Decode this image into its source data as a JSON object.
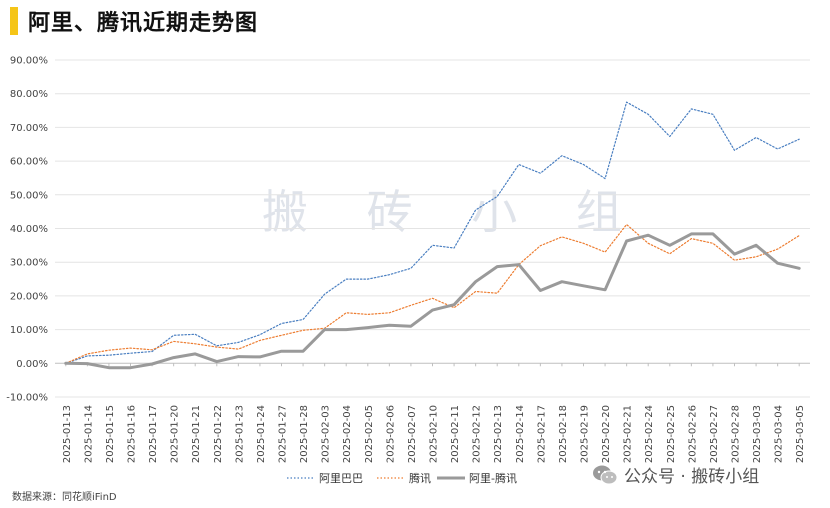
{
  "title": "阿里、腾讯近期走势图",
  "source": "数据来源：同花顺iFinD",
  "watermark": "搬 砖 小 组",
  "wechat_label": "公众号 · 搬砖小组",
  "colors": {
    "alibaba": "#4a7fc1",
    "tencent": "#ed7d31",
    "spread": "#9a9a9a",
    "accent": "#f5c518"
  },
  "chart_data": {
    "type": "line",
    "categories": [
      "2025-01-13",
      "2025-01-14",
      "2025-01-15",
      "2025-01-16",
      "2025-01-17",
      "2025-01-20",
      "2025-01-21",
      "2025-01-22",
      "2025-01-23",
      "2025-01-24",
      "2025-01-27",
      "2025-01-28",
      "2025-02-03",
      "2025-02-04",
      "2025-02-05",
      "2025-02-06",
      "2025-02-07",
      "2025-02-10",
      "2025-02-11",
      "2025-02-12",
      "2025-02-13",
      "2025-02-14",
      "2025-02-17",
      "2025-02-18",
      "2025-02-19",
      "2025-02-20",
      "2025-02-21",
      "2025-02-24",
      "2025-02-25",
      "2025-02-26",
      "2025-02-27",
      "2025-02-28",
      "2025-03-03",
      "2025-03-04",
      "2025-03-05"
    ],
    "series": [
      {
        "name": "阿里巴巴",
        "style": "dotted",
        "values": [
          0.0,
          2.2,
          2.4,
          3.0,
          3.5,
          8.3,
          8.6,
          5.2,
          6.2,
          8.5,
          11.8,
          13.0,
          20.5,
          25.0,
          25.0,
          26.3,
          28.2,
          35.0,
          34.2,
          45.5,
          49.5,
          59.0,
          56.4,
          61.6,
          59.0,
          54.8,
          77.5,
          73.9,
          67.3,
          75.5,
          73.9,
          63.2,
          67.0,
          63.6,
          66.5
        ]
      },
      {
        "name": "腾讯",
        "style": "dotted",
        "values": [
          0.0,
          2.8,
          3.9,
          4.5,
          4.0,
          6.5,
          5.8,
          4.8,
          4.2,
          6.8,
          8.3,
          9.8,
          10.4,
          15.0,
          14.5,
          15.0,
          17.2,
          19.3,
          16.5,
          21.3,
          20.8,
          29.3,
          34.9,
          37.5,
          35.6,
          33.0,
          41.2,
          35.6,
          32.5,
          37.0,
          35.6,
          30.6,
          31.6,
          33.9,
          37.9
        ]
      },
      {
        "name": "阿里-腾讯",
        "style": "solid",
        "values": [
          0.0,
          -0.1,
          -1.3,
          -1.3,
          -0.2,
          1.7,
          2.8,
          0.5,
          2.0,
          1.9,
          3.6,
          3.6,
          10.0,
          10.0,
          10.6,
          11.3,
          11.0,
          15.8,
          17.4,
          24.2,
          28.7,
          29.3,
          21.6,
          24.2,
          23.0,
          21.8,
          36.3,
          38.0,
          35.0,
          38.4,
          38.4,
          32.4,
          35.0,
          29.7,
          28.2
        ]
      }
    ],
    "ylim": [
      -10,
      90
    ],
    "yticks": [
      -10,
      0,
      10,
      20,
      30,
      40,
      50,
      60,
      70,
      80,
      90
    ],
    "ytick_labels": [
      "-10.00%",
      "0.00%",
      "10.00%",
      "20.00%",
      "30.00%",
      "40.00%",
      "50.00%",
      "60.00%",
      "70.00%",
      "80.00%",
      "90.00%"
    ],
    "grid": true,
    "legend_position": "bottom-center"
  }
}
